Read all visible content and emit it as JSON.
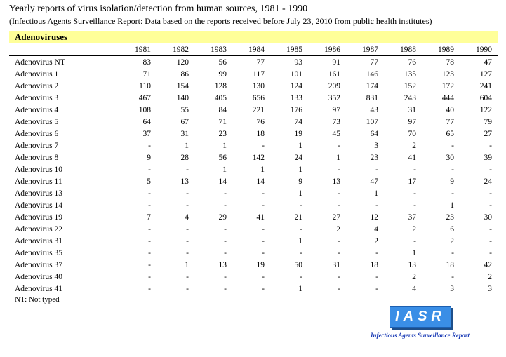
{
  "title": "Yearly reports of virus isolation/detection from human sources, 1981 - 1990",
  "subtitle": "(Infectious Agents Surveillance Report: Data based on the reports received before July 23, 2010 from public health institutes)",
  "section_label": "Adenoviruses",
  "table": {
    "row_header": "",
    "years": [
      "1981",
      "1982",
      "1983",
      "1984",
      "1985",
      "1986",
      "1987",
      "1988",
      "1989",
      "1990"
    ],
    "rows": [
      {
        "name": "Adenovirus NT",
        "values": [
          "83",
          "120",
          "56",
          "77",
          "93",
          "91",
          "77",
          "76",
          "78",
          "47"
        ]
      },
      {
        "name": "Adenovirus 1",
        "values": [
          "71",
          "86",
          "99",
          "117",
          "101",
          "161",
          "146",
          "135",
          "123",
          "127"
        ]
      },
      {
        "name": "Adenovirus 2",
        "values": [
          "110",
          "154",
          "128",
          "130",
          "124",
          "209",
          "174",
          "152",
          "172",
          "241"
        ]
      },
      {
        "name": "Adenovirus 3",
        "values": [
          "467",
          "140",
          "405",
          "656",
          "133",
          "352",
          "831",
          "243",
          "444",
          "604"
        ]
      },
      {
        "name": "Adenovirus 4",
        "values": [
          "108",
          "55",
          "84",
          "221",
          "176",
          "97",
          "43",
          "31",
          "40",
          "122"
        ]
      },
      {
        "name": "Adenovirus 5",
        "values": [
          "64",
          "67",
          "71",
          "76",
          "74",
          "73",
          "107",
          "97",
          "77",
          "79"
        ]
      },
      {
        "name": "Adenovirus 6",
        "values": [
          "37",
          "31",
          "23",
          "18",
          "19",
          "45",
          "64",
          "70",
          "65",
          "27"
        ]
      },
      {
        "name": "Adenovirus 7",
        "values": [
          "-",
          "1",
          "1",
          "-",
          "1",
          "-",
          "3",
          "2",
          "-",
          "-"
        ]
      },
      {
        "name": "Adenovirus 8",
        "values": [
          "9",
          "28",
          "56",
          "142",
          "24",
          "1",
          "23",
          "41",
          "30",
          "39"
        ]
      },
      {
        "name": "Adenovirus 10",
        "values": [
          "-",
          "-",
          "1",
          "1",
          "1",
          "-",
          "-",
          "-",
          "-",
          "-"
        ]
      },
      {
        "name": "Adenovirus 11",
        "values": [
          "5",
          "13",
          "14",
          "14",
          "9",
          "13",
          "47",
          "17",
          "9",
          "24"
        ]
      },
      {
        "name": "Adenovirus 13",
        "values": [
          "-",
          "-",
          "-",
          "-",
          "1",
          "-",
          "1",
          "-",
          "-",
          "-"
        ]
      },
      {
        "name": "Adenovirus 14",
        "values": [
          "-",
          "-",
          "-",
          "-",
          "-",
          "-",
          "-",
          "-",
          "1",
          "-"
        ]
      },
      {
        "name": "Adenovirus 19",
        "values": [
          "7",
          "4",
          "29",
          "41",
          "21",
          "27",
          "12",
          "37",
          "23",
          "30"
        ]
      },
      {
        "name": "Adenovirus 22",
        "values": [
          "-",
          "-",
          "-",
          "-",
          "-",
          "2",
          "4",
          "2",
          "6",
          "-"
        ]
      },
      {
        "name": "Adenovirus 31",
        "values": [
          "-",
          "-",
          "-",
          "-",
          "1",
          "-",
          "2",
          "-",
          "2",
          "-"
        ]
      },
      {
        "name": "Adenovirus 35",
        "values": [
          "-",
          "-",
          "-",
          "-",
          "-",
          "-",
          "-",
          "1",
          "-",
          "-"
        ]
      },
      {
        "name": "Adenovirus 37",
        "values": [
          "-",
          "1",
          "13",
          "19",
          "50",
          "31",
          "18",
          "13",
          "18",
          "42"
        ]
      },
      {
        "name": "Adenovirus 40",
        "values": [
          "-",
          "-",
          "-",
          "-",
          "-",
          "-",
          "-",
          "2",
          "-",
          "2"
        ]
      },
      {
        "name": "Adenovirus 41",
        "values": [
          "-",
          "-",
          "-",
          "-",
          "1",
          "-",
          "-",
          "4",
          "3",
          "3"
        ]
      }
    ]
  },
  "footnote": "NT: Not typed",
  "logo": {
    "text": "IASR",
    "caption": "Infectious Agents Surveillance Report",
    "color": "#3a8ee6"
  }
}
